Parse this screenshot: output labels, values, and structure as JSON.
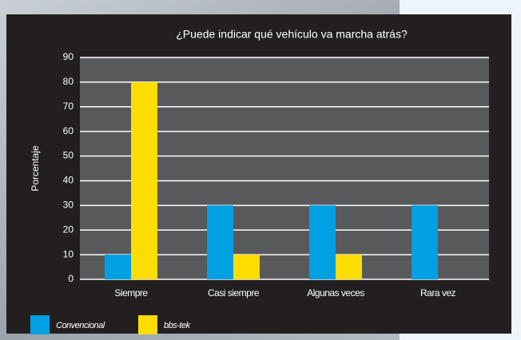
{
  "chart_data": {
    "type": "bar",
    "title": "¿Puede indicar qué vehículo va marcha atrás?",
    "y_label": "Porcentaje",
    "categories": [
      "Siempre",
      "Casi siempre",
      "Algunas veces",
      "Rara vez"
    ],
    "series": [
      {
        "name": "Convencional",
        "color": "#00a0e3",
        "values": [
          10,
          30,
          30,
          30
        ]
      },
      {
        "name": "bbs-tek",
        "color": "#ffdd00",
        "values": [
          80,
          10,
          10,
          0
        ]
      }
    ],
    "ylim": [
      0,
      90
    ],
    "yticks": [
      0,
      10,
      20,
      30,
      40,
      50,
      60,
      70,
      80,
      90
    ],
    "grid": true,
    "legend": "bottom-left"
  }
}
